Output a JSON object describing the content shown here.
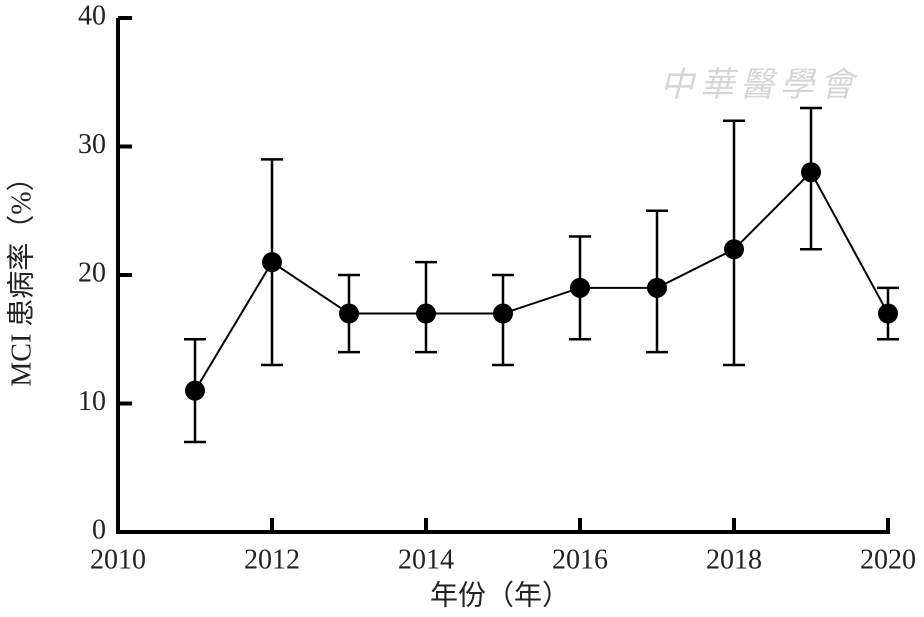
{
  "chart_data": {
    "type": "line",
    "x": [
      2011,
      2012,
      2013,
      2014,
      2015,
      2016,
      2017,
      2018,
      2019,
      2020
    ],
    "series": [
      {
        "color": "#000000",
        "values": [
          11,
          21,
          17,
          17,
          17,
          19,
          19,
          22,
          28,
          17
        ],
        "error_lower": [
          7,
          13,
          14,
          14,
          13,
          15,
          14,
          13,
          22,
          15
        ],
        "error_upper": [
          15,
          29,
          20,
          21,
          20,
          23,
          25,
          32,
          33,
          19
        ]
      }
    ],
    "xlim": [
      2010,
      2020
    ],
    "xticks": [
      2010,
      2012,
      2014,
      2016,
      2018,
      2020
    ],
    "ylim": [
      0,
      40
    ],
    "yticks": [
      0,
      10,
      20,
      30,
      40
    ],
    "xlabel": "年份（年）",
    "ylabel": "MCI 患病率（%）",
    "watermark": "中華醫學會"
  }
}
